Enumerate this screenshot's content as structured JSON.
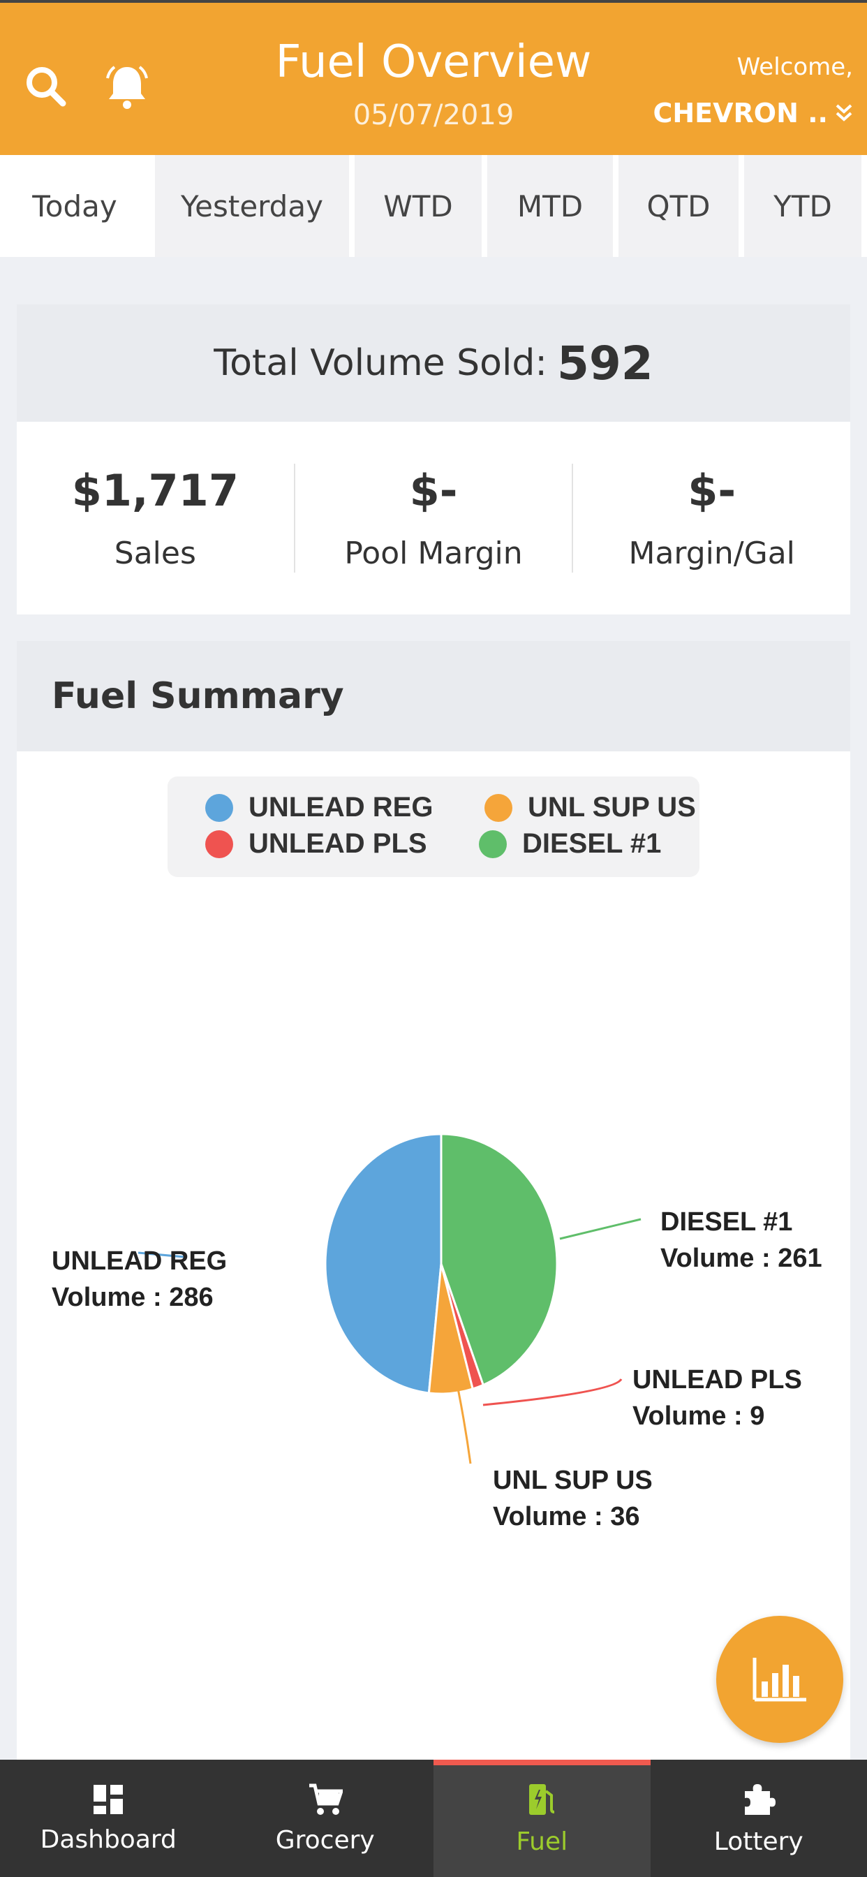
{
  "header": {
    "title": "Fuel Overview",
    "date": "05/07/2019",
    "welcome": "Welcome,",
    "account": "CHEVRON ..",
    "bg_color": "#f2a431",
    "icons": [
      "search-icon",
      "bell-icon",
      "double-chevron-down-icon"
    ]
  },
  "tabs": [
    {
      "label": "Today",
      "active": true
    },
    {
      "label": "Yesterday",
      "active": false
    },
    {
      "label": "WTD",
      "active": false
    },
    {
      "label": "MTD",
      "active": false
    },
    {
      "label": "QTD",
      "active": false
    },
    {
      "label": "YTD",
      "active": false
    }
  ],
  "totals": {
    "label": "Total Volume Sold:",
    "value": "592",
    "metrics": [
      {
        "value": "$1,717",
        "label": "Sales"
      },
      {
        "value": "$-",
        "label": "Pool Margin"
      },
      {
        "value": "$-",
        "label": "Margin/Gal"
      }
    ]
  },
  "summary": {
    "title": "Fuel Summary"
  },
  "chart_data": {
    "type": "pie",
    "legend_position": "top",
    "slices": [
      {
        "name": "UNLEAD REG",
        "value": 286,
        "color": "#5da5dc",
        "label": "UNLEAD REG",
        "sublabel": "Volume : 286"
      },
      {
        "name": "UNL SUP US",
        "value": 36,
        "color": "#f5a53a",
        "label": "UNL SUP US",
        "sublabel": "Volume : 36"
      },
      {
        "name": "UNLEAD PLS",
        "value": 9,
        "color": "#ef5350",
        "label": "UNLEAD PLS",
        "sublabel": "Volume : 9"
      },
      {
        "name": "DIESEL #1",
        "value": 261,
        "color": "#5fbe6a",
        "label": "DIESEL #1",
        "sublabel": "Volume : 261"
      }
    ]
  },
  "bottom_nav": [
    {
      "label": "Dashboard",
      "icon": "dashboard-icon",
      "active": false
    },
    {
      "label": "Grocery",
      "icon": "cart-icon",
      "active": false
    },
    {
      "label": "Fuel",
      "icon": "fuel-pump-icon",
      "active": true
    },
    {
      "label": "Lottery",
      "icon": "puzzle-icon",
      "active": false
    }
  ],
  "fab": {
    "icon": "bar-chart-icon"
  },
  "colors": {
    "accent": "#f2a431",
    "nav_bg": "#333333",
    "nav_active_text": "#9ccc2c",
    "nav_active_bar": "#f05a4f"
  }
}
